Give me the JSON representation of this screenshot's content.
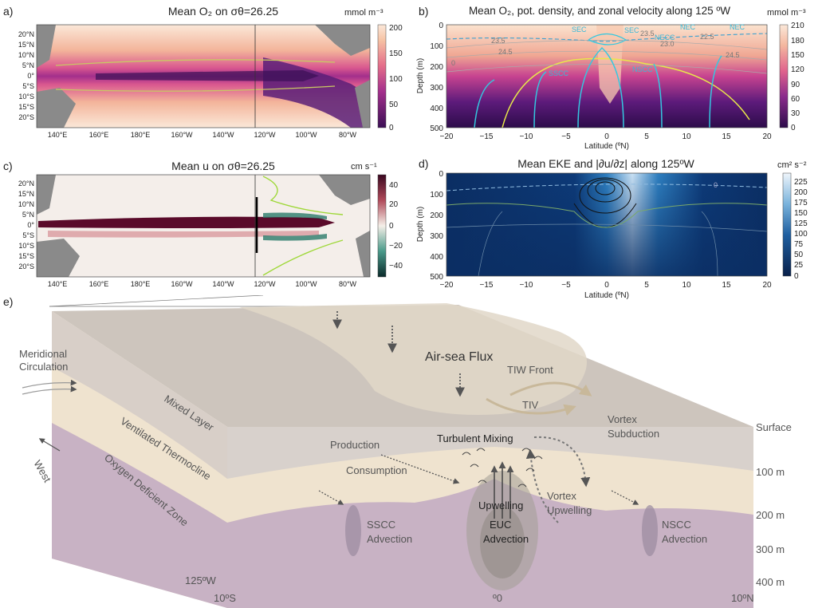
{
  "panels": {
    "a": {
      "label": "a)",
      "title": "Mean O₂ on σθ=26.25",
      "cb_unit": "mmol m⁻³",
      "cb_ticks": [
        "200",
        "150",
        "100",
        "50",
        "0"
      ]
    },
    "b": {
      "label": "b)",
      "title": "Mean O₂, pot. density, and zonal velocity along 125 ºW",
      "cb_unit": "mmol m⁻³",
      "cb_ticks": [
        "210",
        "180",
        "150",
        "120",
        "90",
        "60",
        "30",
        "0"
      ],
      "ylabel": "Depth (m)",
      "xlabel": "Latitude (ºN)",
      "current_labels": [
        "SEC",
        "SEC",
        "NEC",
        "NECC",
        "NEC",
        "NSCC",
        "SSCC"
      ],
      "density_labels": [
        "23.5",
        "24.5",
        "22.5",
        "23.0",
        "23.5",
        "24.5",
        "0"
      ]
    },
    "c": {
      "label": "c)",
      "title": "Mean u on σθ=26.25",
      "cb_unit": "cm s⁻¹",
      "cb_ticks": [
        "40",
        "20",
        "0",
        "−20",
        "−40"
      ]
    },
    "d": {
      "label": "d)",
      "title": "Mean EKE and |∂u/∂z| along 125ºW",
      "cb_unit": "cm² s⁻²",
      "cb_ticks": [
        "225",
        "200",
        "175",
        "150",
        "125",
        "100",
        "75",
        "50",
        "25",
        "0"
      ],
      "ylabel": "Depth (m)",
      "xlabel": "Latitude (ºN)",
      "contour_label": "0"
    },
    "e": {
      "label": "e)"
    }
  },
  "map_axes": {
    "lat_ticks": [
      "20°N",
      "15°N",
      "10°N",
      "5°N",
      "0°",
      "5°S",
      "10°S",
      "15°S",
      "20°S"
    ],
    "lon_ticks": [
      "140°E",
      "160°E",
      "180°E",
      "160°W",
      "140°W",
      "120°W",
      "100°W",
      "80°W"
    ]
  },
  "section_axes": {
    "lat_ticks": [
      "−20",
      "−15",
      "−10",
      "−5",
      "0",
      "5",
      "10",
      "15",
      "20"
    ],
    "depth_ticks": [
      "0",
      "100",
      "200",
      "300",
      "400",
      "500"
    ]
  },
  "schematic": {
    "labels": {
      "meridional": "Meridional",
      "circulation": "Circulation",
      "west": "West",
      "mixed_layer": "Mixed Layer",
      "ventilated": "Ventilated Thermocline",
      "odz": "Oxygen Deficient Zone",
      "air_sea": "Air-sea Flux",
      "tiw_front": "TIW Front",
      "tiv": "TIV",
      "production": "Production",
      "consumption": "Consumption",
      "turbulent": "Turbulent Mixing",
      "vortex": "Vortex",
      "subduction": "Subduction",
      "upwelling": "Upwelling",
      "vortex_up": "Vortex",
      "vortex_up2": "Upwelling",
      "sscc": "SSCC",
      "sscc2": "Advection",
      "euc": "EUC",
      "euc2": "Advection",
      "nscc": "NSCC",
      "nscc2": "Advection",
      "surface": "Surface",
      "d100": "100 m",
      "d200": "200 m",
      "d300": "300 m",
      "d400": "400 m",
      "lon": "125ºW",
      "s10": "10ºS",
      "eq": "º0",
      "n10": "10ºN"
    }
  },
  "colors": {
    "o2_high": "#fbe8d9",
    "o2_low": "#3b0f55",
    "o2_mid": "#d13f8f",
    "u_pos": "#5a0a2a",
    "u_neg": "#0d3b37",
    "eke_low": "#0b2e63",
    "eke_high": "#e8f2fb",
    "density_line": "#c8c864",
    "velocity_line": "#35c8e0"
  },
  "chart_data": [
    {
      "type": "heatmap",
      "panel": "a",
      "title": "Mean O₂ on σθ=26.25",
      "colorbar_unit": "mmol m⁻³",
      "colorbar_range": [
        0,
        200
      ],
      "lon_ticks": [
        "140°E",
        "160°E",
        "180°E",
        "160°W",
        "140°W",
        "120°W",
        "100°W",
        "80°W"
      ],
      "lat_ticks": [
        "20°N",
        "15°N",
        "10°N",
        "5°N",
        "0°",
        "5°S",
        "10°S",
        "15°S",
        "20°S"
      ]
    },
    {
      "type": "heatmap",
      "panel": "b",
      "title": "Mean O₂, pot. density, and zonal velocity along 125 ºW",
      "colorbar_unit": "mmol m⁻³",
      "colorbar_range": [
        0,
        210
      ],
      "xlabel": "Latitude (ºN)",
      "ylabel": "Depth (m)",
      "xlim": [
        -20,
        20
      ],
      "ylim": [
        500,
        0
      ]
    },
    {
      "type": "heatmap",
      "panel": "c",
      "title": "Mean u on σθ=26.25",
      "colorbar_unit": "cm s⁻¹",
      "colorbar_range": [
        -50,
        50
      ]
    },
    {
      "type": "heatmap",
      "panel": "d",
      "title": "Mean EKE and |∂u/∂z| along 125ºW",
      "colorbar_unit": "cm² s⁻²",
      "colorbar_range": [
        0,
        240
      ],
      "xlabel": "Latitude (ºN)",
      "ylabel": "Depth (m)",
      "xlim": [
        -20,
        20
      ],
      "ylim": [
        500,
        0
      ]
    }
  ]
}
